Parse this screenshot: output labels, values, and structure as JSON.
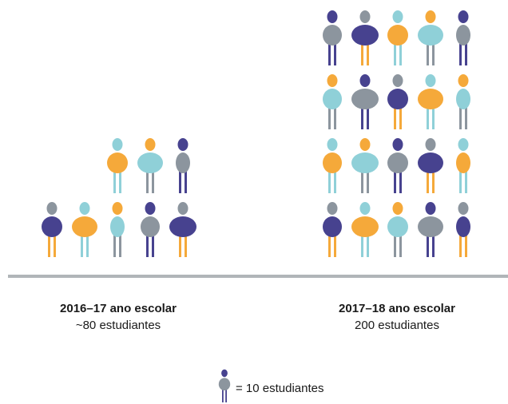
{
  "chart_data": {
    "type": "pictograph",
    "categories": [
      "2016–17 ano escolar",
      "2017–18 ano escolar"
    ],
    "values": [
      80,
      200
    ],
    "value_labels": [
      "~80 estudiantes",
      "200 estudiantes"
    ],
    "unit_value": 10,
    "unit_label": "= 10 estudiantes",
    "colors": [
      "#8fd0d8",
      "#f5a93a",
      "#47428f",
      "#8c959e"
    ]
  }
}
